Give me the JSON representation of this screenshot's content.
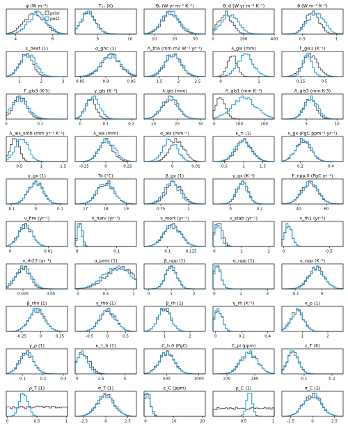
{
  "figure": {
    "legend": {
      "prior_label": "prior",
      "posterior_label": "post.",
      "placement": "top-right of first panel"
    }
  },
  "colors": {
    "prior": "#555555",
    "posterior": "#2a9fd6"
  },
  "chart_data": [
    {
      "type": "area",
      "title": "φ (W m⁻²)",
      "ticks": [
        4,
        6
      ],
      "xlim": [
        3.5,
        6.8
      ],
      "prior_shape": [
        [
          5.0,
          0.55
        ]
      ],
      "post_shape": [
        [
          5.2,
          0.5
        ]
      ]
    },
    {
      "type": "area",
      "title": "T₂ₓ (K)",
      "ticks": [
        5,
        10
      ],
      "xlim": [
        1.5,
        11
      ],
      "prior_shape": [
        [
          3.5,
          1.2
        ]
      ],
      "post_shape": [
        [
          3.5,
          1.1
        ]
      ]
    },
    {
      "type": "area",
      "title": "Θₛ (W yr m⁻² K⁻¹)",
      "ticks": [
        10,
        20,
        30
      ],
      "xlim": [
        5,
        35
      ],
      "prior_shape": [
        [
          18,
          4
        ]
      ],
      "post_shape": [
        [
          18,
          4.5
        ]
      ]
    },
    {
      "type": "area",
      "title": "Θ_d (W yr m⁻² K⁻¹)",
      "ticks": [
        0,
        200,
        400
      ],
      "xlim": [
        0,
        400
      ],
      "prior_shape": [
        [
          80,
          45
        ]
      ],
      "post_shape": [
        [
          110,
          55
        ]
      ]
    },
    {
      "type": "area",
      "title": "θ (W m⁻² K⁻¹)",
      "ticks": [
        0.5,
        1.0
      ],
      "xlim": [
        0.2,
        1.1
      ],
      "prior_shape": [
        [
          0.65,
          0.1
        ]
      ],
      "post_shape": [
        [
          0.7,
          0.12
        ]
      ]
    },
    {
      "type": "area",
      "title": "ε_heat (1)",
      "ticks": [
        1,
        2,
        3
      ],
      "xlim": [
        0.4,
        3.2
      ],
      "prior_shape": [
        [
          1.3,
          0.3
        ]
      ],
      "post_shape": [
        [
          1.4,
          0.35
        ]
      ]
    },
    {
      "type": "area",
      "title": "α_ghc (1)",
      "ticks": [
        0.85,
        0.9,
        0.95
      ],
      "xlim": [
        0.84,
        0.96
      ],
      "prior_shape": [
        [
          0.91,
          0.018
        ]
      ],
      "post_shape": [
        [
          0.91,
          0.02
        ]
      ]
    },
    {
      "type": "area",
      "title": "Λ_tha (mm m2 W⁻¹ yr⁻¹)",
      "ticks": [
        1.5,
        2.0,
        2.5
      ],
      "xlim": [
        1.1,
        2.7
      ],
      "prior_shape": [
        [
          1.85,
          0.2
        ]
      ],
      "post_shape": [
        [
          1.85,
          0.22
        ]
      ]
    },
    {
      "type": "area",
      "title": "λ_gis (mm)",
      "ticks": [
        0,
        1
      ],
      "xlim": [
        -0.2,
        1.4
      ],
      "prior_shape": [
        [
          0.3,
          0.12
        ]
      ],
      "post_shape": [
        [
          0.65,
          0.2
        ]
      ]
    },
    {
      "type": "area",
      "title": "Γ_gis1 (K⁻¹)",
      "ticks": [
        0.25,
        0.5
      ],
      "xlim": [
        0.05,
        0.7
      ],
      "prior_shape": [
        [
          0.35,
          0.08
        ]
      ],
      "post_shape": [
        [
          0.32,
          0.05
        ]
      ]
    },
    {
      "type": "area",
      "title": "Γ_gis3 (K-3)",
      "ticks": [
        0.0,
        0.1
      ],
      "xlim": [
        0.0,
        0.18
      ],
      "prior_shape": [
        [
          0.04,
          0.02
        ]
      ],
      "post_shape": [
        [
          0.04,
          0.025
        ]
      ]
    },
    {
      "type": "area",
      "title": "γ_gis (K⁻¹)",
      "ticks": [
        0.0,
        0.1,
        0.2
      ],
      "xlim": [
        -0.02,
        0.22
      ],
      "prior_shape": [
        [
          0.04,
          0.02
        ]
      ],
      "post_shape": [
        [
          0.05,
          0.025
        ]
      ]
    },
    {
      "type": "area",
      "title": "λ_gis (mm)",
      "ticks": [
        10,
        20,
        30
      ],
      "xlim": [
        6,
        32
      ],
      "prior_shape": [
        [
          17,
          3.5
        ]
      ],
      "post_shape": [
        [
          17,
          3.5
        ]
      ]
    },
    {
      "type": "area",
      "title": "Λ_gis1 (mm K⁻¹)",
      "ticks": [
        0,
        100,
        200
      ],
      "xlim": [
        -5,
        240
      ],
      "prior_shape": [
        [
          25,
          20
        ]
      ],
      "post_shape": [
        [
          120,
          50
        ]
      ]
    },
    {
      "type": "area",
      "title": "Λ_gis3 (mm K-3)",
      "ticks": [
        5,
        10
      ],
      "xlim": [
        1,
        11
      ],
      "prior_shape": [
        [
          5.5,
          1.0
        ]
      ],
      "post_shape": [
        [
          5.8,
          1.1
        ]
      ]
    },
    {
      "type": "area",
      "title": "Λ_ais_smb (mm yr⁻¹ K⁻¹)",
      "ticks": [
        0.5,
        1.0,
        1.5
      ],
      "xlim": [
        0.2,
        1.6
      ],
      "prior_shape": [
        [
          0.4,
          0.1
        ]
      ],
      "post_shape": [
        [
          0.55,
          0.15
        ]
      ]
    },
    {
      "type": "area",
      "title": "λ_ais (mm)",
      "ticks": [
        -0.25,
        0.0,
        0.25
      ],
      "xlim": [
        -0.35,
        0.35
      ],
      "prior_shape": [
        [
          0.0,
          0.08
        ]
      ],
      "post_shape": [
        [
          0.02,
          0.09
        ]
      ]
    },
    {
      "type": "area",
      "title": "α_ais (mm⁻¹)",
      "ticks": [
        0.0,
        0.01
      ],
      "xlim": [
        -0.012,
        0.014
      ],
      "prior_shape": [
        [
          0.002,
          0.003
        ]
      ],
      "post_shape": [
        [
          -0.001,
          0.003
        ]
      ]
    },
    {
      "type": "area",
      "title": "κ_τₗ (1)",
      "ticks": [
        0.5,
        1.0,
        1.5
      ],
      "xlim": [
        0.2,
        1.8
      ],
      "prior_shape": [
        [
          1.0,
          0.2
        ]
      ],
      "post_shape": [
        [
          1.0,
          0.22
        ]
      ]
    },
    {
      "type": "area",
      "title": "ν_gx (PgC ppm⁻¹ yr⁻¹)",
      "ticks": [
        0.2,
        0.4
      ],
      "xlim": [
        0.08,
        0.48
      ],
      "prior_shape": [
        [
          0.22,
          0.05
        ]
      ],
      "post_shape": [
        [
          0.22,
          0.05
        ]
      ]
    },
    {
      "type": "area",
      "title": "γ_gx (1)",
      "ticks": [
        -0.1,
        0.0,
        0.1
      ],
      "xlim": [
        -0.12,
        0.13
      ],
      "prior_shape": [
        [
          0.0,
          0.03
        ]
      ],
      "post_shape": [
        [
          0.0,
          0.03
        ]
      ]
    },
    {
      "type": "area",
      "title": "To (°C)",
      "ticks": [
        17,
        18,
        19
      ],
      "xlim": [
        16.5,
        19.5
      ],
      "prior_shape": [
        [
          18,
          0.4
        ]
      ],
      "post_shape": [
        [
          18,
          0.4
        ]
      ]
    },
    {
      "type": "area",
      "title": "β_gx (1)",
      "ticks": [
        0.75,
        1.0
      ],
      "xlim": [
        0.6,
        1.15
      ],
      "prior_shape": [
        [
          0.87,
          0.07
        ]
      ],
      "post_shape": [
        [
          0.85,
          0.07
        ]
      ]
    },
    {
      "type": "area",
      "title": "γ_gx (K⁻¹)",
      "ticks": [
        0.0,
        0.2
      ],
      "xlim": [
        -0.12,
        0.3
      ],
      "prior_shape": [
        [
          0.08,
          0.04
        ]
      ],
      "post_shape": [
        [
          0.08,
          0.04
        ]
      ]
    },
    {
      "type": "area",
      "title": "F_npp,0 (PgC yr⁻¹)",
      "ticks": [
        40,
        60
      ],
      "xlim": [
        28,
        72
      ],
      "prior_shape": [
        [
          48,
          6
        ]
      ],
      "post_shape": [
        [
          48,
          6
        ]
      ]
    },
    {
      "type": "area",
      "title": "ν_fire (yr⁻¹)",
      "ticks": [
        0.0,
        0.01
      ],
      "xlim": [
        -0.001,
        0.015
      ],
      "prior_shape": [
        [
          0.004,
          0.0018
        ]
      ],
      "post_shape": [
        [
          0.004,
          0.0018
        ]
      ]
    },
    {
      "type": "area",
      "title": "ν_harv (yr⁻¹)",
      "ticks": [
        0.0,
        0.1
      ],
      "xlim": [
        -0.005,
        0.15
      ],
      "prior_shape": [
        [
          0.007,
          0.006
        ]
      ],
      "post_shape": [
        [
          0.006,
          0.005
        ]
      ]
    },
    {
      "type": "area",
      "title": "ν_mort (yr⁻¹)",
      "ticks": [
        0.1,
        0.125
      ],
      "xlim": [
        0.075,
        0.14
      ],
      "prior_shape": [
        [
          0.105,
          0.009
        ]
      ],
      "post_shape": [
        [
          0.105,
          0.009
        ]
      ]
    },
    {
      "type": "area",
      "title": "ν_stab (yr⁻¹)",
      "ticks": [
        0,
        1,
        2
      ],
      "xlim": [
        -0.05,
        2.2
      ],
      "prior_shape": [
        [
          0.15,
          0.15
        ]
      ],
      "post_shape": [
        [
          0.12,
          0.12
        ]
      ]
    },
    {
      "type": "area",
      "title": "ν_rh1 (yr⁻¹)",
      "ticks": [
        0.0,
        0.5
      ],
      "xlim": [
        -0.02,
        0.65
      ],
      "prior_shape": [
        [
          0.05,
          0.04
        ]
      ],
      "post_shape": [
        [
          0.05,
          0.04
        ]
      ]
    },
    {
      "type": "area",
      "title": "ν_rh23 (yr⁻¹)",
      "ticks": [
        0.025,
        0.05
      ],
      "xlim": [
        0.01,
        0.065
      ],
      "prior_shape": [
        [
          0.025,
          0.006
        ]
      ],
      "post_shape": [
        [
          0.025,
          0.007
        ]
      ]
    },
    {
      "type": "area",
      "title": "α_pass (1)",
      "ticks": [
        0.0,
        0.5,
        1.0
      ],
      "xlim": [
        -0.05,
        1.05
      ],
      "prior_shape": [
        [
          0.75,
          0.25
        ]
      ],
      "post_shape": [
        [
          0.7,
          0.25
        ]
      ]
    },
    {
      "type": "area",
      "title": "β_npp (1)",
      "ticks": [
        0,
        1,
        2
      ],
      "xlim": [
        -0.2,
        2.5
      ],
      "prior_shape": [
        [
          1.0,
          0.25
        ]
      ],
      "post_shape": [
        [
          1.0,
          0.25
        ]
      ]
    },
    {
      "type": "area",
      "title": "α_npp (1)",
      "ticks": [
        0,
        2,
        4
      ],
      "xlim": [
        -0.1,
        4.5
      ],
      "prior_shape": [
        [
          0.2,
          0.3
        ]
      ],
      "post_shape": [
        [
          0.2,
          0.3
        ]
      ]
    },
    {
      "type": "area",
      "title": "γ_npp (K⁻¹)",
      "ticks": [
        -0.1,
        0.0
      ],
      "xlim": [
        -0.15,
        0.08
      ],
      "prior_shape": [
        [
          -0.02,
          0.03
        ]
      ],
      "post_shape": [
        [
          -0.02,
          0.03
        ]
      ]
    },
    {
      "type": "area",
      "title": "β_rho (1)",
      "ticks": [
        -0.25,
        0.0,
        0.25
      ],
      "xlim": [
        -0.45,
        0.35
      ],
      "prior_shape": [
        [
          -0.05,
          0.1
        ]
      ],
      "post_shape": [
        [
          -0.05,
          0.1
        ]
      ]
    },
    {
      "type": "area",
      "title": "γ_rho (1)",
      "ticks": [
        -0.5,
        0.0,
        0.5
      ],
      "xlim": [
        -0.9,
        0.8
      ],
      "prior_shape": [
        [
          0.0,
          0.22
        ]
      ],
      "post_shape": [
        [
          0.0,
          0.22
        ]
      ]
    },
    {
      "type": "area",
      "title": "β_rh (1)",
      "ticks": [
        1,
        2
      ],
      "xlim": [
        0.2,
        2.6
      ],
      "prior_shape": [
        [
          1.0,
          0.25
        ]
      ],
      "post_shape": [
        [
          1.0,
          0.25
        ]
      ]
    },
    {
      "type": "area",
      "title": "γ_rh (K⁻¹)",
      "ticks": [
        0.0,
        0.2,
        0.4
      ],
      "xlim": [
        -0.02,
        0.45
      ],
      "prior_shape": [
        [
          0.02,
          0.03
        ]
      ],
      "post_shape": [
        [
          0.02,
          0.03
        ]
      ]
    },
    {
      "type": "area",
      "title": "κ_ρ (1)",
      "ticks": [
        1,
        2
      ],
      "xlim": [
        0.2,
        2.6
      ],
      "prior_shape": [
        [
          0.8,
          0.25
        ]
      ],
      "post_shape": [
        [
          0.8,
          0.25
        ]
      ]
    },
    {
      "type": "area",
      "title": "γ_ρ (1)",
      "ticks": [
        0.1,
        0.2,
        0.3
      ],
      "xlim": [
        0.02,
        0.32
      ],
      "prior_shape": [
        [
          0.12,
          0.035
        ]
      ],
      "post_shape": [
        [
          0.12,
          0.035
        ]
      ]
    },
    {
      "type": "area",
      "title": "κ_τ_b (1)",
      "ticks": [
        0.0,
        2.5,
        5.0
      ],
      "xlim": [
        -0.2,
        6.2
      ],
      "prior_shape": [
        [
          0.6,
          0.7
        ]
      ],
      "post_shape": [
        [
          0.5,
          0.6
        ]
      ]
    },
    {
      "type": "area",
      "title": "C_h,0 (PgC)",
      "ticks": [
        500,
        1000
      ],
      "xlim": [
        150,
        1100
      ],
      "prior_shape": [
        [
          500,
          120
        ]
      ],
      "post_shape": [
        [
          500,
          120
        ]
      ]
    },
    {
      "type": "area",
      "title": "C_pi (ppm)",
      "ticks": [
        270,
        280
      ],
      "xlim": [
        265,
        287
      ],
      "prior_shape": [
        [
          278,
          3
        ]
      ],
      "post_shape": [
        [
          278,
          3
        ]
      ]
    },
    {
      "type": "area",
      "title": "ε_T (K)",
      "ticks": [
        0.1,
        0.2
      ],
      "xlim": [
        0.02,
        0.24
      ],
      "prior_shape": [
        [
          0.06,
          0.02
        ]
      ],
      "post_shape": [
        [
          0.06,
          0.02
        ]
      ]
    },
    {
      "type": "area",
      "title": "ρ_T (1)",
      "ticks": [
        0.0,
        0.5,
        1.0
      ],
      "xlim": [
        -0.02,
        1.02
      ],
      "prior_shape": [
        [
          "uniform"
        ]
      ],
      "post_shape": [
        [
          0.28,
          0.07
        ]
      ]
    },
    {
      "type": "area",
      "title": "σ_T (1)",
      "ticks": [
        -2.5,
        0.0,
        2.5
      ],
      "xlim": [
        -3.5,
        3.5
      ],
      "prior_shape": [
        [
          0.0,
          1.0
        ]
      ],
      "post_shape": [
        [
          0.0,
          1.0
        ]
      ]
    },
    {
      "type": "area",
      "title": "ε_C (ppm)",
      "ticks": [
        0,
        10,
        20
      ],
      "xlim": [
        -0.5,
        21
      ],
      "prior_shape": [
        [
          0.5,
          1.2
        ]
      ],
      "post_shape": [
        [
          0.6,
          1.0
        ]
      ]
    },
    {
      "type": "area",
      "title": "ρ_C (1)",
      "ticks": [
        0.5,
        1.0
      ],
      "xlim": [
        -0.02,
        1.02
      ],
      "prior_shape": [
        [
          "uniform"
        ]
      ],
      "post_shape": [
        [
          0.6,
          0.05
        ]
      ]
    },
    {
      "type": "area",
      "title": "σ_C (1)",
      "ticks": [
        -2.5,
        0.0,
        2.5
      ],
      "xlim": [
        -3.5,
        3.5
      ],
      "prior_shape": [
        [
          0.0,
          1.0
        ]
      ],
      "post_shape": [
        [
          0.0,
          1.0
        ]
      ]
    }
  ]
}
